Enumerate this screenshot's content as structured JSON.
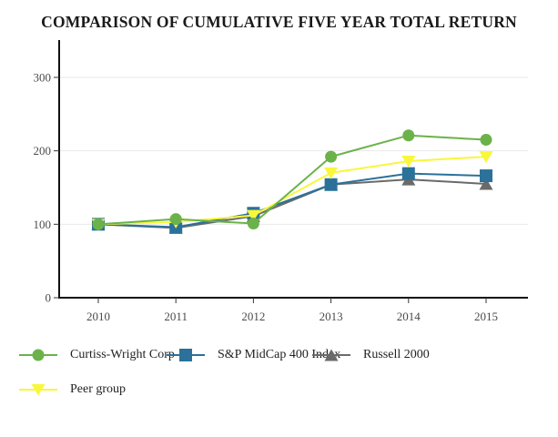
{
  "title": "COMPARISON OF CUMULATIVE FIVE YEAR TOTAL RETURN",
  "chart_data": {
    "type": "line",
    "x": [
      "2010",
      "2011",
      "2012",
      "2013",
      "2014",
      "2015"
    ],
    "series": [
      {
        "name": "Curtiss-Wright Corp",
        "marker": "circle",
        "color": "#6BB24A",
        "values": [
          100,
          107,
          101,
          192,
          221,
          215
        ]
      },
      {
        "name": "S&P MidCap 400 Index",
        "marker": "square",
        "color": "#2B7199",
        "values": [
          100,
          96,
          115,
          154,
          169,
          166
        ]
      },
      {
        "name": "Russell 2000",
        "marker": "triangle-up",
        "color": "#6A6A6A",
        "values": [
          100,
          95,
          111,
          154,
          161,
          155
        ]
      },
      {
        "name": "Peer group",
        "marker": "triangle-down",
        "color": "#F8F73B",
        "values": [
          100,
          103,
          112,
          170,
          186,
          192
        ]
      }
    ],
    "yticks": [
      0,
      100,
      200,
      300
    ],
    "ylim": [
      0,
      350
    ],
    "grid": true,
    "gridline_color": "#E9E9E9",
    "axis_color": "#111111",
    "tick_color": "#333333",
    "tick_label_color": "#4A4A4A",
    "legend_position": "bottom-left"
  }
}
